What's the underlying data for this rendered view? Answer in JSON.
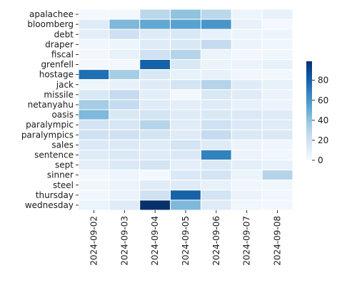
{
  "chart_data": {
    "type": "heatmap",
    "title": "",
    "xlabel": "",
    "ylabel": "",
    "colormap": [
      "#f7fbff",
      "#deebf7",
      "#c6dbef",
      "#9ecae1",
      "#6baed6",
      "#4292c6",
      "#2171b5",
      "#08519c",
      "#08306b"
    ],
    "color_range": [
      0,
      99
    ],
    "colorbar_ticks": [
      "0",
      "20",
      "40",
      "60",
      "80"
    ],
    "colorbar_tick_values": [
      0,
      20,
      40,
      60,
      80
    ],
    "x": [
      "2024-09-02",
      "2024-09-03",
      "2024-09-04",
      "2024-09-05",
      "2024-09-06",
      "2024-09-07",
      "2024-09-08"
    ],
    "y": [
      "apalachee",
      "bloomberg",
      "debt",
      "draper",
      "fiscal",
      "grenfell",
      "hostage",
      "jack",
      "missile",
      "netanyahu",
      "oasis",
      "paralympic",
      "paralympics",
      "sales",
      "sentence",
      "sept",
      "sinner",
      "steel",
      "thursday",
      "wednesday"
    ],
    "values": [
      [
        2,
        3,
        28,
        40,
        28,
        5,
        8
      ],
      [
        12,
        45,
        52,
        55,
        60,
        8,
        2
      ],
      [
        10,
        20,
        12,
        15,
        8,
        5,
        5
      ],
      [
        4,
        5,
        12,
        15,
        25,
        6,
        4
      ],
      [
        3,
        8,
        20,
        30,
        6,
        3,
        4
      ],
      [
        2,
        2,
        80,
        15,
        6,
        6,
        8
      ],
      [
        75,
        35,
        15,
        8,
        8,
        4,
        3
      ],
      [
        5,
        8,
        12,
        18,
        30,
        12,
        8
      ],
      [
        15,
        25,
        10,
        2,
        15,
        12,
        6
      ],
      [
        35,
        25,
        12,
        10,
        12,
        8,
        6
      ],
      [
        45,
        15,
        18,
        12,
        15,
        14,
        12
      ],
      [
        18,
        16,
        30,
        12,
        20,
        14,
        12
      ],
      [
        20,
        20,
        18,
        12,
        25,
        14,
        14
      ],
      [
        14,
        14,
        12,
        18,
        12,
        6,
        4
      ],
      [
        12,
        14,
        12,
        14,
        68,
        6,
        4
      ],
      [
        10,
        14,
        18,
        10,
        14,
        10,
        8
      ],
      [
        3,
        5,
        2,
        14,
        18,
        6,
        30
      ],
      [
        4,
        6,
        12,
        12,
        8,
        4,
        4
      ],
      [
        3,
        6,
        20,
        80,
        18,
        6,
        4
      ],
      [
        6,
        12,
        99,
        45,
        12,
        4,
        3
      ]
    ]
  }
}
